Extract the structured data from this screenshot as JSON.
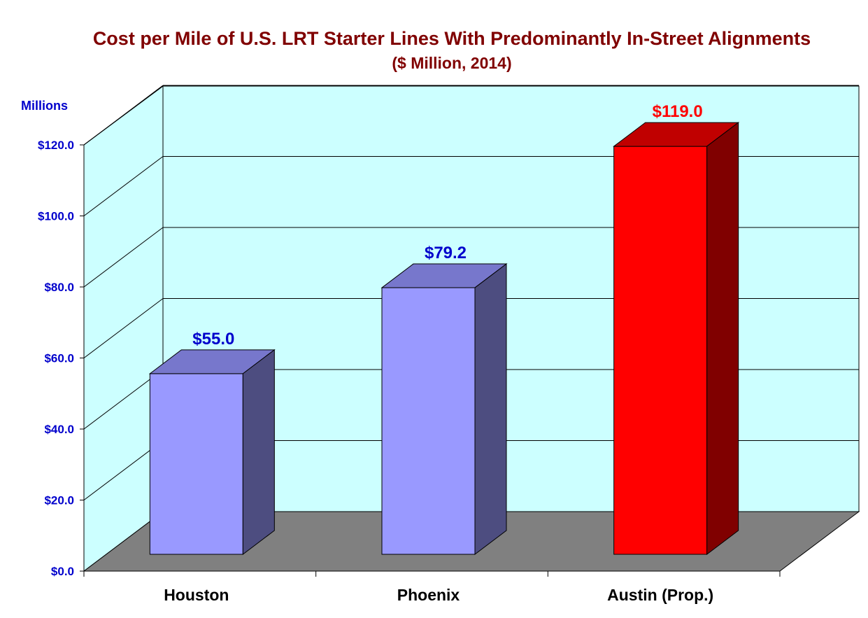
{
  "chart_data": {
    "type": "bar",
    "title": "Cost per Mile of U.S. LRT Starter Lines With Predominantly In-Street Alignments",
    "subtitle": "($ Million, 2014)",
    "ylabel": "Millions",
    "xlabel": "",
    "ylim": [
      0,
      120
    ],
    "yticks": [
      0,
      20,
      40,
      60,
      80,
      100,
      120
    ],
    "ytick_labels": [
      "$0.0",
      "$20.0",
      "$40.0",
      "$60.0",
      "$80.0",
      "$100.0",
      "$120.0"
    ],
    "categories": [
      "Houston",
      "Phoenix",
      "Austin (Prop.)"
    ],
    "values": [
      55.0,
      79.2,
      119.0
    ],
    "data_labels": [
      "$55.0",
      "$79.2",
      "$119.0"
    ],
    "grid": true,
    "legend": "none",
    "colors": {
      "title": "#800000",
      "axis_text": "#0000cc",
      "back_wall": "#ccffff",
      "floor": "#808080",
      "bar_front": [
        "#9999ff",
        "#9999ff",
        "#ff0000"
      ],
      "bar_top": [
        "#7777cc",
        "#7777cc",
        "#c00000"
      ],
      "bar_side": [
        "#4d4d80",
        "#4d4d80",
        "#800000"
      ],
      "data_label": [
        "#0000cc",
        "#0000cc",
        "#ff0000"
      ]
    }
  }
}
